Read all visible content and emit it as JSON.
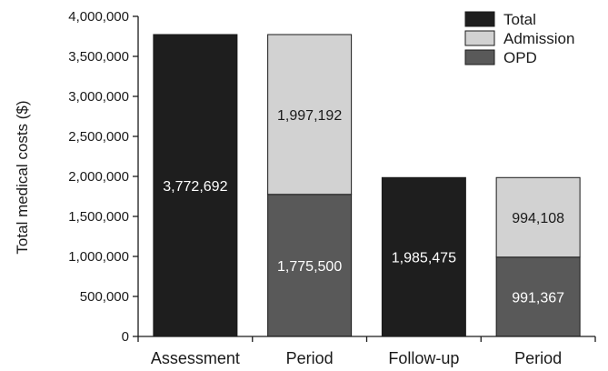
{
  "chart_data": {
    "type": "bar",
    "stacked": true,
    "ylabel": "Total medical costs ($)",
    "ylim": [
      0,
      4000000
    ],
    "yticks": [
      {
        "value": 0,
        "label": "0"
      },
      {
        "value": 500000,
        "label": "500,000"
      },
      {
        "value": 1000000,
        "label": "1,000,000"
      },
      {
        "value": 1500000,
        "label": "1,500,000"
      },
      {
        "value": 2000000,
        "label": "2,000,000"
      },
      {
        "value": 2500000,
        "label": "2,500,000"
      },
      {
        "value": 3000000,
        "label": "3,000,000"
      },
      {
        "value": 3500000,
        "label": "3,500,000"
      },
      {
        "value": 4000000,
        "label": "4,000,000"
      }
    ],
    "categories": [
      "Assessment",
      "Period",
      "Follow-up",
      "Period"
    ],
    "series": [
      {
        "name": "Total",
        "color": "#1e1e1e",
        "label_color": "#ffffff",
        "values": [
          3772692,
          null,
          1985475,
          null
        ],
        "labels": [
          "3,772,692",
          "",
          "1,985,475",
          ""
        ]
      },
      {
        "name": "OPD",
        "color": "#595959",
        "label_color": "#ffffff",
        "values": [
          null,
          1775500,
          null,
          991367
        ],
        "labels": [
          "",
          "1,775,500",
          "",
          "991,367"
        ]
      },
      {
        "name": "Admission",
        "color": "#d2d2d2",
        "label_color": "#1a1a1a",
        "values": [
          null,
          1997192,
          null,
          994108
        ],
        "labels": [
          "",
          "1,997,192",
          "",
          "994,108"
        ]
      }
    ],
    "legend": {
      "position": "top-right",
      "items": [
        {
          "name": "Total",
          "color": "#1e1e1e"
        },
        {
          "name": "Admission",
          "color": "#d2d2d2"
        },
        {
          "name": "OPD",
          "color": "#595959"
        }
      ]
    }
  }
}
